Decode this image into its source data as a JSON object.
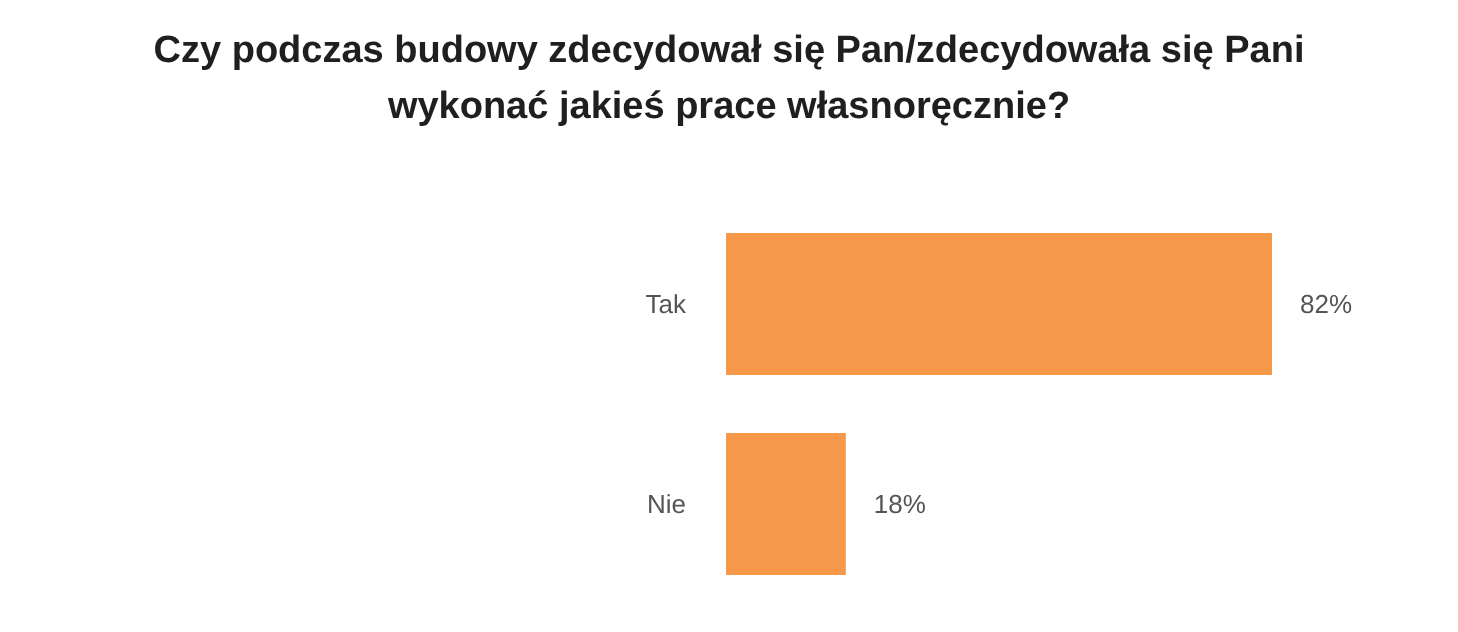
{
  "chart_data": {
    "type": "bar",
    "orientation": "horizontal",
    "title": "Czy podczas budowy zdecydował się Pan/zdecydowała się Pani wykonać jakieś prace własnoręcznie?",
    "categories": [
      "Tak",
      "Nie"
    ],
    "values": [
      82,
      18
    ],
    "color": "#f7994a",
    "value_labels": [
      "82%",
      "18%"
    ],
    "grid": false,
    "legend": false
  }
}
